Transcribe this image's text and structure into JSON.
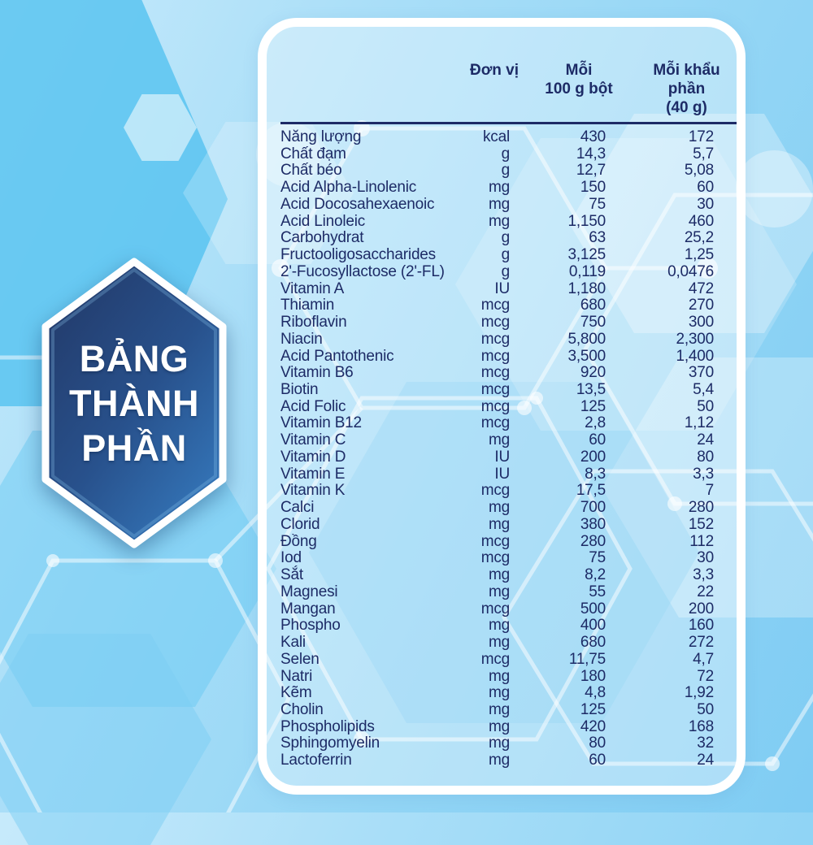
{
  "badge": {
    "lines": [
      "BẢNG",
      "THÀNH",
      "PHẦN"
    ]
  },
  "table": {
    "header": {
      "unit_l1": "Đơn vị",
      "unit_l2": "",
      "per100_l1": "Mỗi",
      "per100_l2": "100 g bột",
      "serving_l1": "Mỗi khẩu phần",
      "serving_l2": "(40 g)"
    },
    "rows": [
      {
        "name": "Năng lượng",
        "unit": "kcal",
        "per100": "430",
        "serving": "172"
      },
      {
        "name": "Chất đạm",
        "unit": "g",
        "per100": "14,3",
        "serving": "5,7"
      },
      {
        "name": "Chất béo",
        "unit": "g",
        "per100": "12,7",
        "serving": "5,08"
      },
      {
        "name": "Acid Alpha-Linolenic",
        "unit": "mg",
        "per100": "150",
        "serving": "60"
      },
      {
        "name": "Acid Docosahexaenoic",
        "unit": "mg",
        "per100": "75",
        "serving": "30"
      },
      {
        "name": "Acid Linoleic",
        "unit": "mg",
        "per100": "1,150",
        "serving": "460"
      },
      {
        "name": "Carbohydrat",
        "unit": "g",
        "per100": "63",
        "serving": "25,2"
      },
      {
        "name": "Fructooligosaccharides",
        "unit": "g",
        "per100": "3,125",
        "serving": "1,25"
      },
      {
        "name": "2'-Fucosyllactose (2'-FL)",
        "unit": "g",
        "per100": "0,119",
        "serving": "0,0476"
      },
      {
        "name": "Vitamin A",
        "unit": "IU",
        "per100": "1,180",
        "serving": "472"
      },
      {
        "name": "Thiamin",
        "unit": "mcg",
        "per100": "680",
        "serving": "270"
      },
      {
        "name": "Riboflavin",
        "unit": "mcg",
        "per100": "750",
        "serving": "300"
      },
      {
        "name": "Niacin",
        "unit": "mcg",
        "per100": "5,800",
        "serving": "2,300"
      },
      {
        "name": "Acid Pantothenic",
        "unit": "mcg",
        "per100": "3,500",
        "serving": "1,400"
      },
      {
        "name": "Vitamin B6",
        "unit": "mcg",
        "per100": "920",
        "serving": "370"
      },
      {
        "name": "Biotin",
        "unit": "mcg",
        "per100": "13,5",
        "serving": "5,4"
      },
      {
        "name": "Acid Folic",
        "unit": "mcg",
        "per100": "125",
        "serving": "50"
      },
      {
        "name": "Vitamin B12",
        "unit": "mcg",
        "per100": "2,8",
        "serving": "1,12"
      },
      {
        "name": "Vitamin C",
        "unit": "mg",
        "per100": "60",
        "serving": "24"
      },
      {
        "name": "Vitamin D",
        "unit": "IU",
        "per100": "200",
        "serving": "80"
      },
      {
        "name": "Vitamin E",
        "unit": "IU",
        "per100": "8,3",
        "serving": "3,3"
      },
      {
        "name": "Vitamin K",
        "unit": "mcg",
        "per100": "17,5",
        "serving": "7"
      },
      {
        "name": "Calci",
        "unit": "mg",
        "per100": "700",
        "serving": "280"
      },
      {
        "name": "Clorid",
        "unit": "mg",
        "per100": "380",
        "serving": "152"
      },
      {
        "name": "Đồng",
        "unit": "mcg",
        "per100": "280",
        "serving": "112"
      },
      {
        "name": "Iod",
        "unit": "mcg",
        "per100": "75",
        "serving": "30"
      },
      {
        "name": "Sắt",
        "unit": "mg",
        "per100": "8,2",
        "serving": "3,3"
      },
      {
        "name": "Magnesi",
        "unit": "mg",
        "per100": "55",
        "serving": "22"
      },
      {
        "name": "Mangan",
        "unit": "mcg",
        "per100": "500",
        "serving": "200"
      },
      {
        "name": "Phospho",
        "unit": "mg",
        "per100": "400",
        "serving": "160"
      },
      {
        "name": "Kali",
        "unit": "mg",
        "per100": "680",
        "serving": "272"
      },
      {
        "name": "Selen",
        "unit": "mcg",
        "per100": "11,75",
        "serving": "4,7"
      },
      {
        "name": "Natri",
        "unit": "mg",
        "per100": "180",
        "serving": "72"
      },
      {
        "name": "Kẽm",
        "unit": "mg",
        "per100": "4,8",
        "serving": "1,92"
      },
      {
        "name": "Cholin",
        "unit": "mg",
        "per100": "125",
        "serving": "50"
      },
      {
        "name": "Phospholipids",
        "unit": "mg",
        "per100": "420",
        "serving": "168"
      },
      {
        "name": "Sphingomyelin",
        "unit": "mg",
        "per100": "80",
        "serving": "32"
      },
      {
        "name": "Lactoferrin",
        "unit": "mg",
        "per100": "60",
        "serving": "24"
      }
    ]
  },
  "colors": {
    "text_navy": "#1d2b66",
    "badge_gradient_top": "#223765",
    "badge_gradient_mid": "#28518c",
    "badge_gradient_bottom": "#3579bd",
    "background_blue": "#8ed4f5",
    "accent_hexagon_blue": "#54c2f0",
    "card_border_white": "#ffffff"
  }
}
